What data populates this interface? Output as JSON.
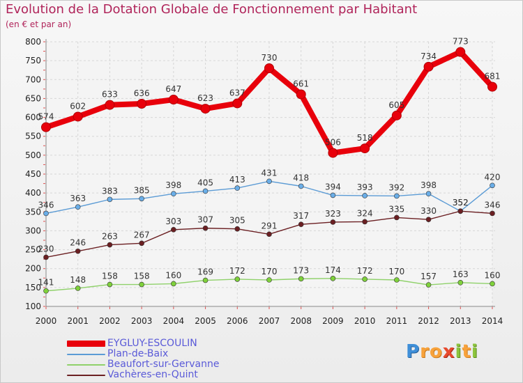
{
  "header": {
    "title": "Evolution de la Dotation Globale de Fonctionnement par Habitant",
    "subtitle": "(en € et par an)"
  },
  "logo": {
    "p": "P",
    "ro": "ro",
    "x": "x",
    "i1": "i",
    "t": "t",
    "i2": "i"
  },
  "chart_data": {
    "type": "line",
    "title": "Evolution de la Dotation Globale de Fonctionnement par Habitant",
    "subtitle": "(en € et par an)",
    "x": [
      2000,
      2001,
      2002,
      2003,
      2004,
      2005,
      2006,
      2007,
      2008,
      2009,
      2010,
      2011,
      2012,
      2013,
      2014
    ],
    "ylim": [
      100,
      800
    ],
    "yticks": [
      100,
      150,
      200,
      250,
      300,
      350,
      400,
      450,
      500,
      550,
      600,
      650,
      700,
      750,
      800
    ],
    "grid": true,
    "legend_position": "bottom-left",
    "series": [
      {
        "name": "EYGLUY-ESCOULIN",
        "color": "#e8000b",
        "marker_color": "#e8000b",
        "label_color": "#333333",
        "emphasis": true,
        "values": [
          574,
          602,
          633,
          636,
          647,
          623,
          637,
          730,
          661,
          506,
          518,
          605,
          734,
          773,
          681
        ]
      },
      {
        "name": "Plan-de-Baix",
        "color": "#5b9bd5",
        "marker_color": "#6aaee8",
        "label_color": "#333333",
        "emphasis": false,
        "values": [
          346,
          363,
          383,
          385,
          398,
          405,
          413,
          431,
          418,
          394,
          393,
          392,
          398,
          352,
          420
        ]
      },
      {
        "name": "Beaufort-sur-Gervanne",
        "color": "#8fd16a",
        "marker_color": "#7fd13b",
        "label_color": "#333333",
        "emphasis": false,
        "values": [
          141,
          148,
          158,
          158,
          160,
          169,
          172,
          170,
          173,
          174,
          172,
          170,
          157,
          163,
          160
        ]
      },
      {
        "name": "Vachères-en-Quint",
        "color": "#6b1f22",
        "marker_color": "#6b1f22",
        "label_color": "#333333",
        "emphasis": false,
        "values": [
          230,
          246,
          263,
          267,
          303,
          307,
          305,
          291,
          317,
          323,
          324,
          335,
          330,
          352,
          346
        ]
      }
    ]
  }
}
